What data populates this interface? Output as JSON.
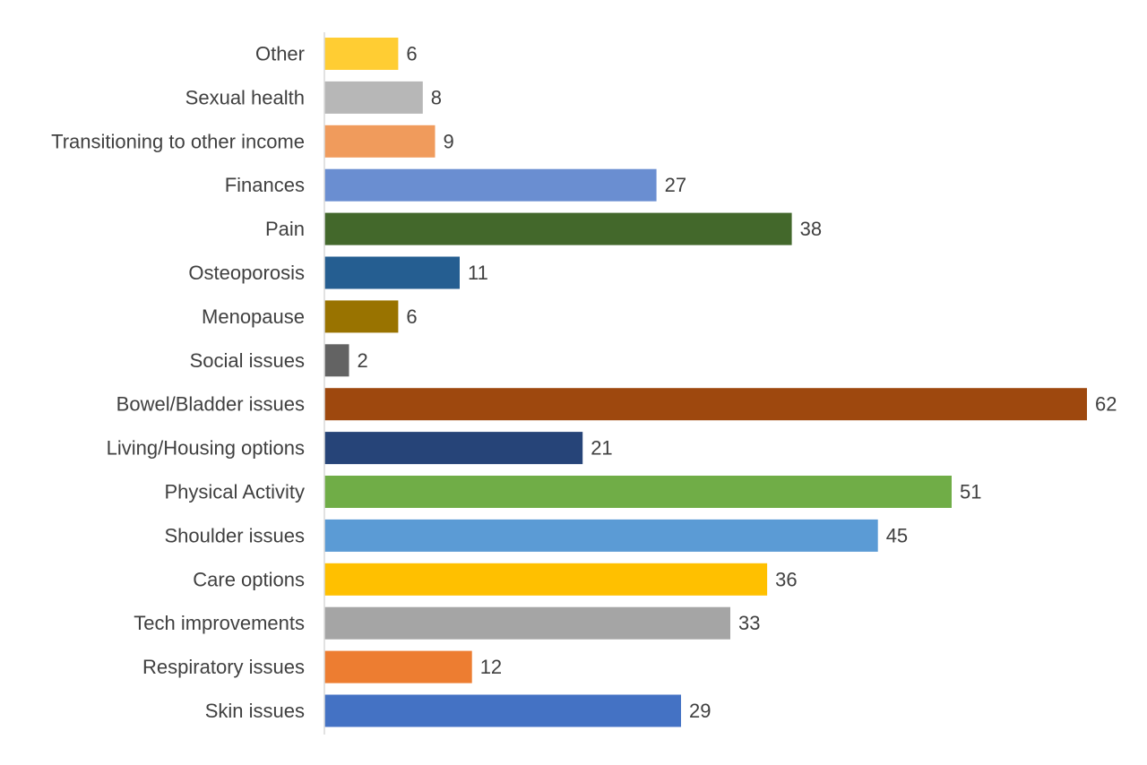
{
  "chart_data": {
    "type": "bar",
    "orientation": "horizontal",
    "categories": [
      "Other",
      "Sexual health",
      "Transitioning to other income",
      "Finances",
      "Pain",
      "Osteoporosis",
      "Menopause",
      "Social issues",
      "Bowel/Bladder issues",
      "Living/Housing options",
      "Physical Activity",
      "Shoulder issues",
      "Care options",
      "Tech improvements",
      "Respiratory issues",
      "Skin issues"
    ],
    "values": [
      6,
      8,
      9,
      27,
      38,
      11,
      6,
      2,
      62,
      21,
      51,
      45,
      36,
      33,
      12,
      29
    ],
    "colors": [
      "#FFCD33",
      "#B7B7B7",
      "#F09B5C",
      "#6A8ED1",
      "#43682B",
      "#255E91",
      "#997300",
      "#636363",
      "#9E480E",
      "#264478",
      "#70AD47",
      "#5B9BD5",
      "#FFC000",
      "#A5A5A5",
      "#ED7D31",
      "#4472C4"
    ],
    "title": "",
    "xlabel": "",
    "ylabel": "",
    "xlim": [
      0,
      62
    ],
    "data_labels": true,
    "grid": false,
    "legend": "none",
    "text_color": "#404040",
    "axis_color": "#D9D9D9"
  }
}
